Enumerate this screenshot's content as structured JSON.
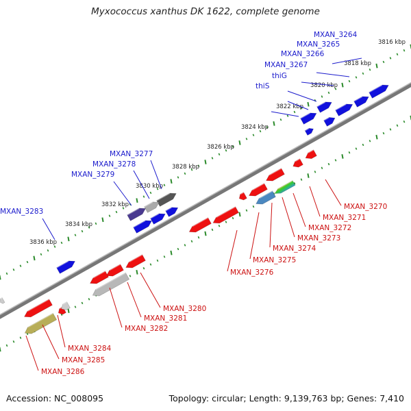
{
  "title": "Myxococcus xanthus DK 1622, complete genome",
  "footer": {
    "accession": "Accession: NC_008095",
    "topology": "Topology: circular; Length: 9,139,763 bp; Genes: 7,410"
  },
  "colors": {
    "forward_label": "#1a1acc",
    "reverse_label": "#cc1010",
    "forward_gene": "#1111dd",
    "reverse_gene": "#ee1111",
    "backbone": "#888888",
    "tick": "#2a8a2a"
  },
  "kbp_labels": [
    "3816 kbp",
    "3818 kbp",
    "3820 kbp",
    "3822 kbp",
    "3824 kbp",
    "3826 kbp",
    "3828 kbp",
    "3830 kbp",
    "3832 kbp",
    "3834 kbp",
    "3836 kbp"
  ],
  "forward_genes": [
    "MXAN_3264",
    "MXAN_3265",
    "MXAN_3266",
    "MXAN_3267",
    "thiG",
    "thiS",
    "MXAN_3277",
    "MXAN_3278",
    "MXAN_3279",
    "MXAN_3283"
  ],
  "reverse_genes": [
    "MXAN_3270",
    "MXAN_3271",
    "MXAN_3272",
    "MXAN_3273",
    "MXAN_3274",
    "MXAN_3275",
    "MXAN_3276",
    "MXAN_3280",
    "MXAN_3281",
    "MXAN_3282",
    "MXAN_3284",
    "MXAN_3285",
    "MXAN_3286"
  ]
}
